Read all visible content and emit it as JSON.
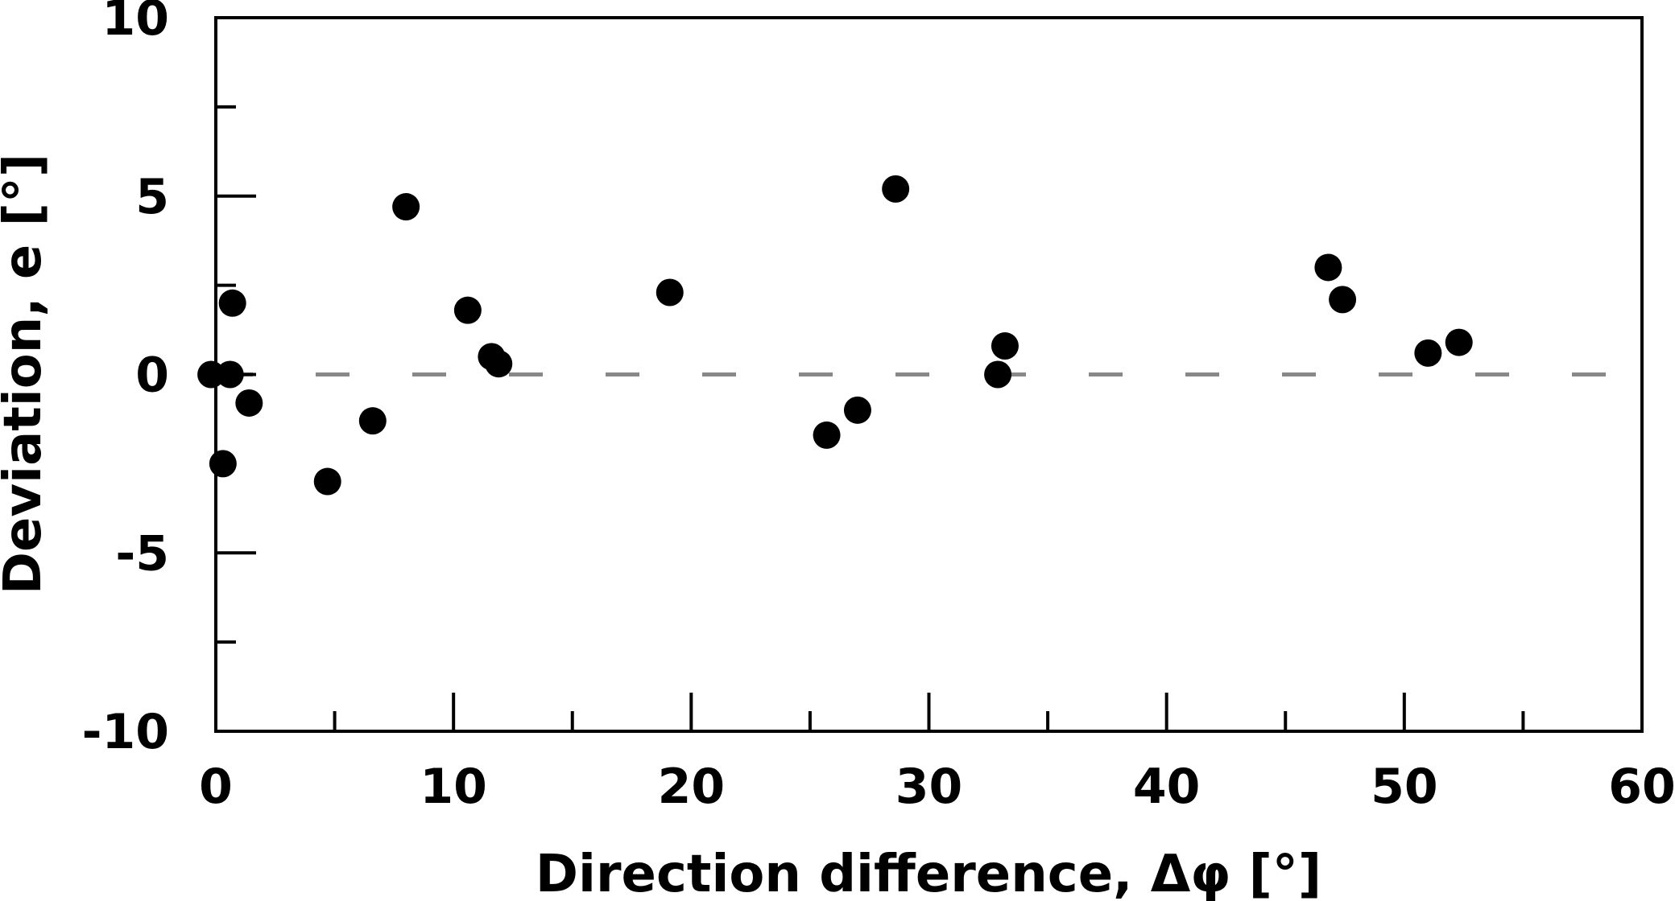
{
  "chart_data": {
    "type": "scatter",
    "xlabel": "Direction difference, Δφ [°]",
    "ylabel": "Deviation, e [°]",
    "xlim": [
      0,
      60
    ],
    "ylim": [
      -10,
      10
    ],
    "x_ticks": [
      0,
      10,
      20,
      30,
      40,
      50,
      60
    ],
    "x_tick_labels": [
      "0",
      "10",
      "20",
      "30",
      "40",
      "50",
      "60"
    ],
    "x_minor_ticks": [
      5,
      15,
      25,
      35,
      45,
      55
    ],
    "y_ticks": [
      -10,
      -5,
      0,
      5,
      10
    ],
    "y_tick_labels": [
      "-10",
      "-5",
      "0",
      "5",
      "10"
    ],
    "y_minor_ticks": [
      -7.5,
      -2.5,
      2.5,
      7.5
    ],
    "grid": false,
    "legend": "none",
    "reference_line": {
      "y": 0,
      "style": "dashed",
      "color": "#888888"
    },
    "marker_color": "#000000",
    "series": [
      {
        "points": [
          [
            -0.2,
            0.0
          ],
          [
            0.3,
            -2.5
          ],
          [
            0.6,
            0.0
          ],
          [
            0.7,
            2.0
          ],
          [
            1.4,
            -0.8
          ],
          [
            4.7,
            -3.0
          ],
          [
            6.6,
            -1.3
          ],
          [
            8.0,
            4.7
          ],
          [
            10.6,
            1.8
          ],
          [
            11.6,
            0.5
          ],
          [
            11.9,
            0.3
          ],
          [
            19.1,
            2.3
          ],
          [
            25.7,
            -1.7
          ],
          [
            27.0,
            -1.0
          ],
          [
            28.6,
            5.2
          ],
          [
            32.9,
            0.0
          ],
          [
            33.2,
            0.8
          ],
          [
            46.8,
            3.0
          ],
          [
            47.4,
            2.1
          ],
          [
            51.0,
            0.6
          ],
          [
            52.3,
            0.9
          ]
        ]
      }
    ]
  }
}
